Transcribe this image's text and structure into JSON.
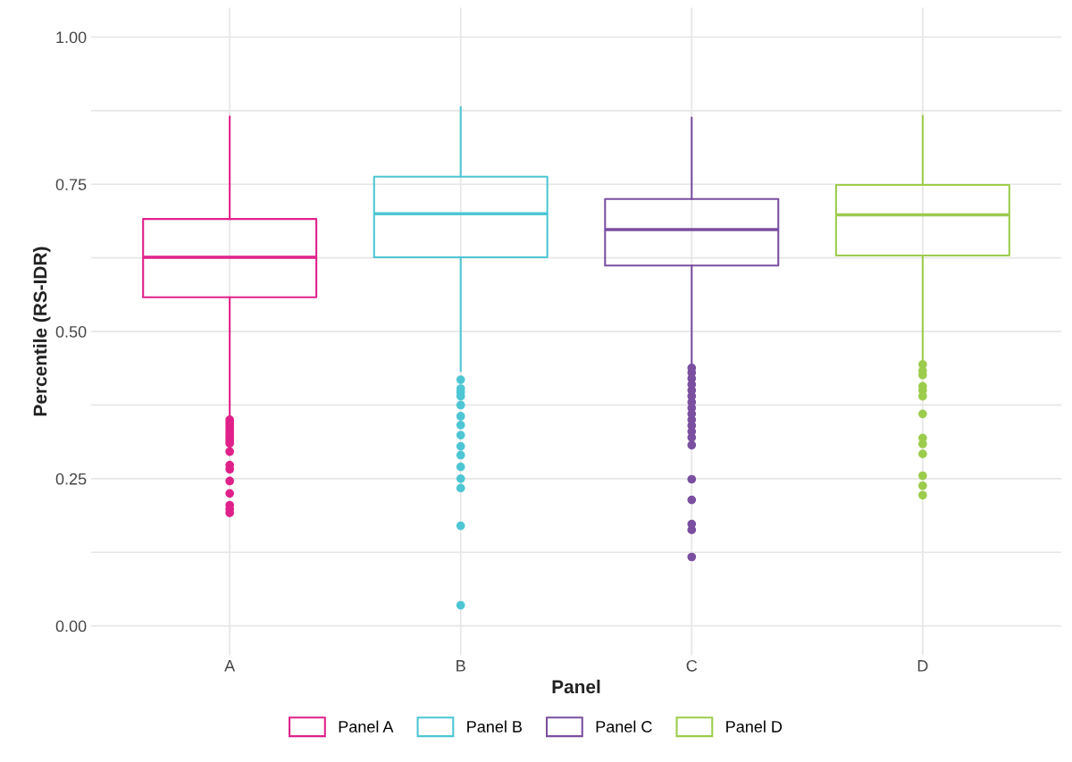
{
  "chart_data": {
    "type": "box",
    "xlabel": "Panel",
    "ylabel": "Percentile (RS-IDR)",
    "categories": [
      "A",
      "B",
      "C",
      "D"
    ],
    "ylim": [
      -0.05,
      1.05
    ],
    "yticks": [
      {
        "value": 0,
        "label": "0.00"
      },
      {
        "value": 0.25,
        "label": "0.25"
      },
      {
        "value": 0.5,
        "label": "0.50"
      },
      {
        "value": 0.75,
        "label": "0.75"
      },
      {
        "value": 1,
        "label": "1.00"
      }
    ],
    "grid": true,
    "legend": "bottom",
    "series": [
      {
        "name": "Panel A",
        "color": "#e0218a",
        "boxes": [
          {
            "low": 0.355,
            "q1": 0.558,
            "median": 0.626,
            "q3": 0.691,
            "high": 0.865,
            "outliers": [
              0.35,
              0.345,
              0.34,
              0.335,
              0.33,
              0.325,
              0.32,
              0.315,
              0.31,
              0.296,
              0.273,
              0.266,
              0.246,
              0.225,
              0.205,
              0.198,
              0.192
            ]
          },
          null,
          null,
          null
        ]
      },
      {
        "name": "Panel B",
        "color": "#4ec6d4",
        "boxes": [
          null,
          {
            "low": 0.433,
            "q1": 0.626,
            "median": 0.7,
            "q3": 0.763,
            "high": 0.881,
            "outliers": [
              0.418,
              0.403,
              0.397,
              0.39,
              0.375,
              0.356,
              0.341,
              0.324,
              0.305,
              0.29,
              0.27,
              0.25,
              0.234,
              0.17,
              0.035
            ]
          },
          null,
          null
        ]
      },
      {
        "name": "Panel C",
        "color": "#7b4fa0",
        "boxes": [
          null,
          null,
          {
            "low": 0.444,
            "q1": 0.612,
            "median": 0.673,
            "q3": 0.725,
            "high": 0.863,
            "outliers": [
              0.438,
              0.43,
              0.42,
              0.41,
              0.4,
              0.39,
              0.38,
              0.37,
              0.36,
              0.35,
              0.34,
              0.33,
              0.32,
              0.307,
              0.249,
              0.214,
              0.173,
              0.163,
              0.117
            ]
          },
          null
        ]
      },
      {
        "name": "Panel D",
        "color": "#9ccc4c",
        "boxes": [
          null,
          null,
          null,
          {
            "low": 0.453,
            "q1": 0.629,
            "median": 0.698,
            "q3": 0.749,
            "high": 0.866,
            "outliers": [
              0.444,
              0.433,
              0.426,
              0.407,
              0.4,
              0.39,
              0.36,
              0.319,
              0.309,
              0.292,
              0.255,
              0.238,
              0.222
            ]
          }
        ]
      }
    ]
  }
}
